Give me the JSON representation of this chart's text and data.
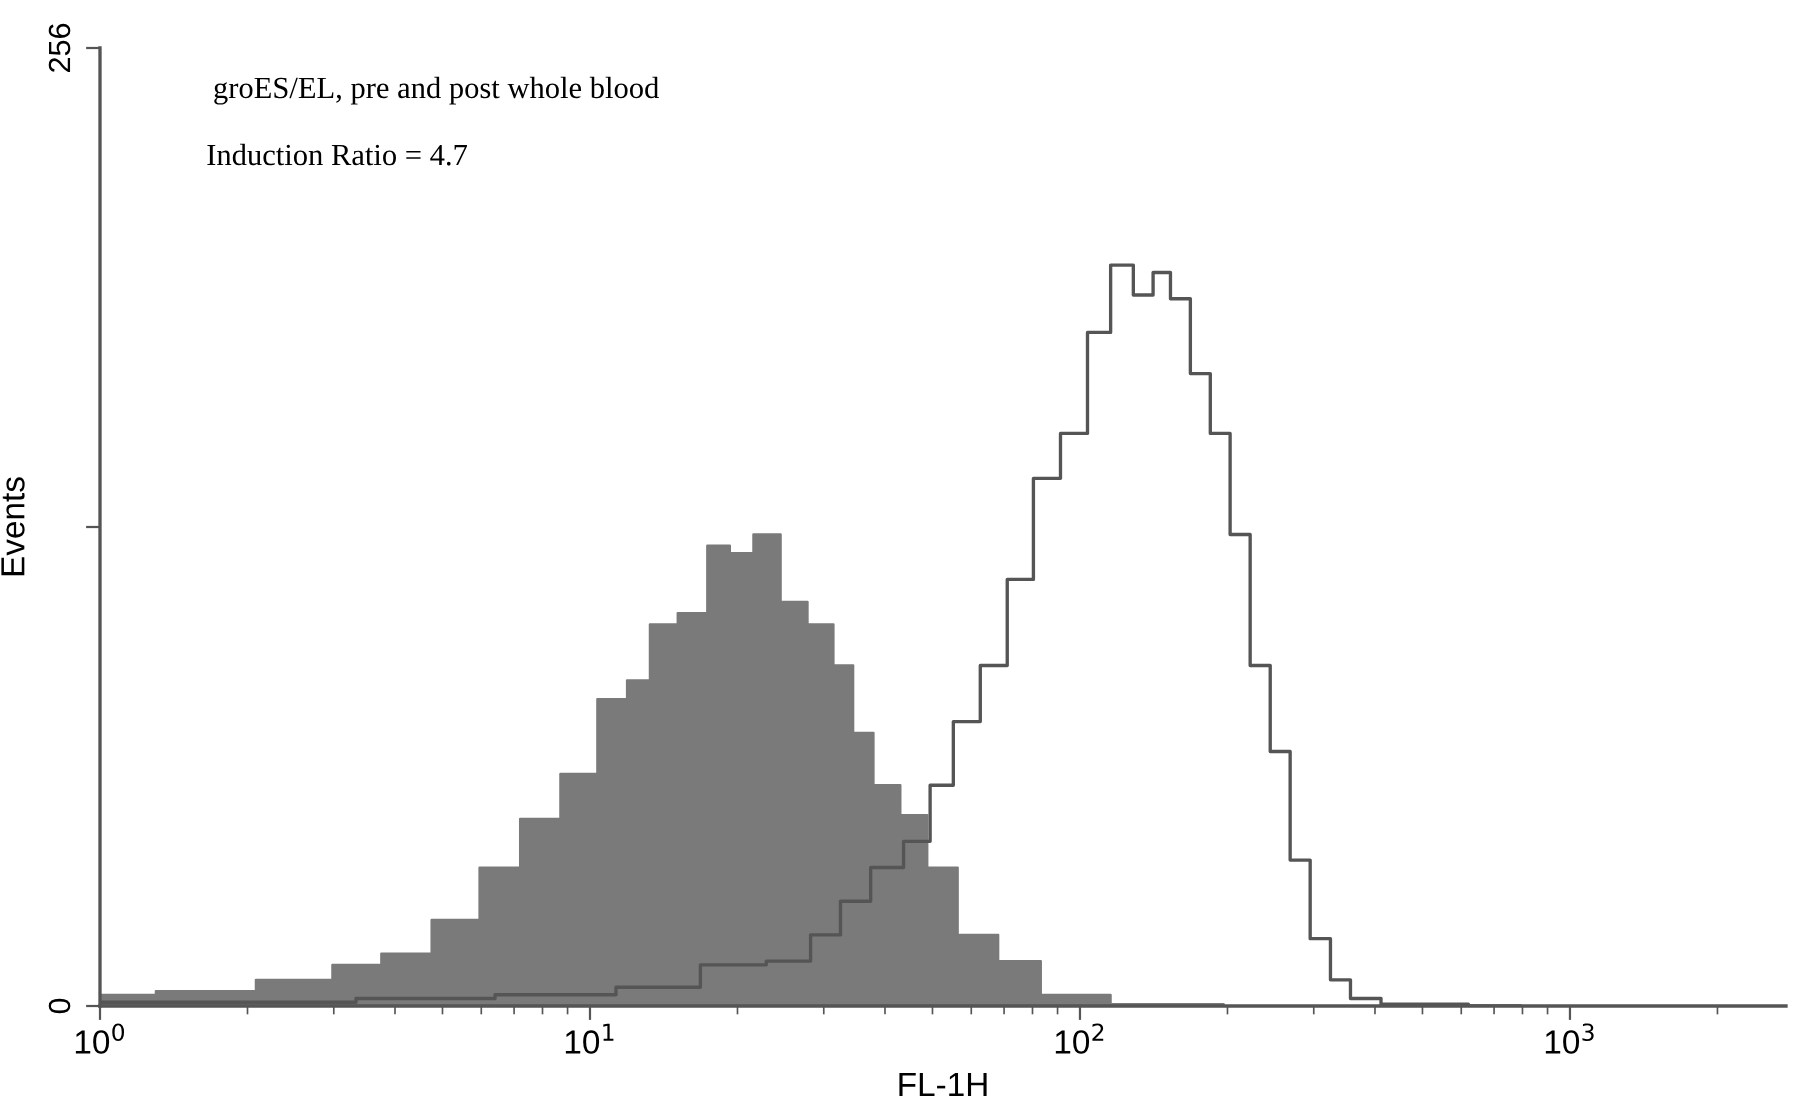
{
  "chart_data": {
    "type": "area",
    "xlabel": "FL-1H",
    "ylabel": "Events",
    "annotations": [
      "groES/EL, pre and post whole blood",
      "Induction Ratio = 4.7"
    ],
    "log": "x",
    "xlim": [
      1,
      2760
    ],
    "xticks": [
      {
        "value": 1,
        "label": "10$^{0}$"
      },
      {
        "value": 10,
        "label": "10$^{1}$"
      },
      {
        "value": 100,
        "label": "10$^{2}$"
      },
      {
        "value": 1000,
        "label": "10$^{3}$"
      }
    ],
    "ylim": [
      0,
      256
    ],
    "yticks": [
      0,
      {
        "value": 128,
        "label": null
      },
      256
    ],
    "grid": false,
    "legend": false,
    "series": [
      {
        "color": "#7a7a7a",
        "x": [
          1,
          1.6,
          2.56,
          3.4,
          4.1,
          5.4,
          6.5,
          7.9,
          9.5,
          11.2,
          12.6,
          13.9,
          16.3,
          18.4,
          20.2,
          22.9,
          26.1,
          29.5,
          33.3,
          35.6,
          40.2,
          45.8,
          51.8,
          60.8,
          75.4,
          91.0,
          107,
          124,
          160,
          233
        ],
        "values": [
          3,
          4,
          7,
          11,
          14,
          23,
          37,
          50,
          62,
          82,
          87,
          102,
          105,
          123,
          121,
          126,
          108,
          102,
          91,
          73,
          59,
          51,
          37,
          19,
          12,
          3,
          3,
          0.5,
          0.5,
          0
        ]
      },
      {
        "type": "step",
        "color": "#555555",
        "x": [
          1,
          2.56,
          4.1,
          8.7,
          13.9,
          19.7,
          26.1,
          30.3,
          34.6,
          40.2,
          47.1,
          51.8,
          58.5,
          66.7,
          75.4,
          85.3,
          97.2,
          110,
          121,
          136,
          146,
          160,
          176,
          193,
          212,
          233,
          256,
          281,
          309,
          340,
          373,
          450,
          791
        ],
        "values": [
          1,
          1,
          2,
          3,
          5,
          11,
          12,
          19,
          28,
          37,
          44,
          59,
          76,
          91,
          114,
          141,
          153,
          180,
          198,
          190,
          196,
          189,
          169,
          153,
          126,
          91,
          68,
          39,
          18,
          7,
          2,
          0.5,
          0
        ]
      }
    ]
  }
}
